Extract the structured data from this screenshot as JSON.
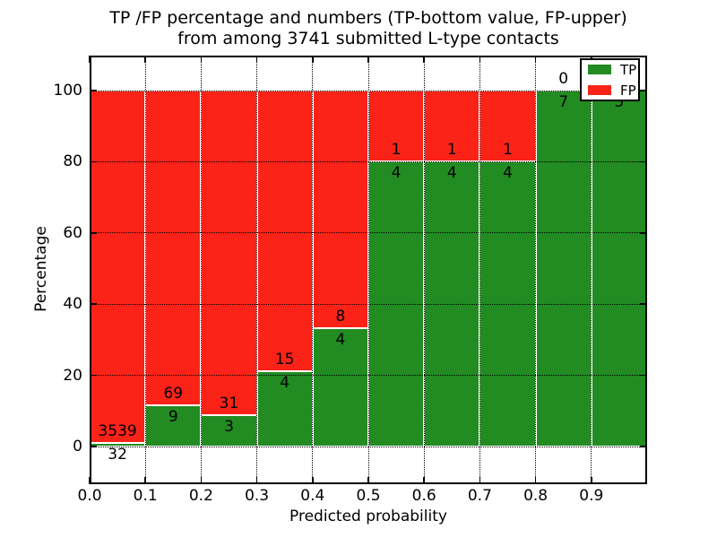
{
  "figure": {
    "title_line1": "TP /FP percentage and numbers (TP-bottom value, FP-upper)",
    "title_line2": "from among 3741 submitted L-type contacts"
  },
  "axes": {
    "xlabel": "Predicted probability",
    "ylabel": "Percentage",
    "xtick_labels": [
      "0.0",
      "0.1",
      "0.2",
      "0.3",
      "0.4",
      "0.5",
      "0.6",
      "0.7",
      "0.8",
      "0.9"
    ],
    "ytick_labels": [
      "0",
      "20",
      "40",
      "60",
      "80",
      "100"
    ],
    "ytick_values": [
      0,
      20,
      40,
      60,
      80,
      100
    ]
  },
  "legend": {
    "items": [
      {
        "label": "TP",
        "color": "#228b22"
      },
      {
        "label": "FP",
        "color": "#fb2318"
      }
    ]
  },
  "chart_data": {
    "type": "bar",
    "stacked": true,
    "normalized_to_percent": true,
    "title": "TP /FP percentage and numbers (TP-bottom value, FP-upper) from among 3741 submitted L-type contacts",
    "xlabel": "Predicted probability",
    "ylabel": "Percentage",
    "xlim": [
      0.0,
      1.0
    ],
    "ylim": [
      -10.6,
      109.8
    ],
    "grid": true,
    "legend_position": "upper right",
    "bin_width": 0.1,
    "total_contacts": 3741,
    "categories": [
      "0.0-0.1",
      "0.1-0.2",
      "0.2-0.3",
      "0.3-0.4",
      "0.4-0.5",
      "0.5-0.6",
      "0.6-0.7",
      "0.7-0.8",
      "0.8-0.9",
      "0.9-1.0"
    ],
    "series": [
      {
        "name": "TP",
        "color": "#228b22",
        "counts": [
          32,
          9,
          3,
          4,
          4,
          4,
          4,
          4,
          7,
          5
        ]
      },
      {
        "name": "FP",
        "color": "#fb2318",
        "counts": [
          3539,
          69,
          31,
          15,
          8,
          1,
          1,
          1,
          0,
          0
        ]
      }
    ],
    "tp_percent": [
      0.9,
      11.5,
      8.8,
      21.1,
      33.3,
      80.0,
      80.0,
      80.0,
      100.0,
      100.0
    ]
  }
}
